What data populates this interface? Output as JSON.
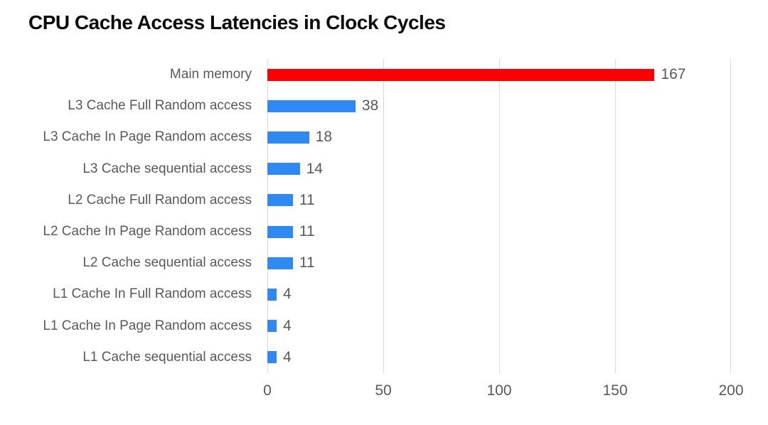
{
  "colors": {
    "highlight_red": "#fb0000",
    "bar_blue": "#2f89f0",
    "axis_text": "#595959",
    "gridline": "#dadada",
    "title_text": "#0a0a0a",
    "background": "#ffffff"
  },
  "chart_data": {
    "type": "bar",
    "orientation": "horizontal",
    "title": "CPU Cache Access Latencies in Clock Cycles",
    "categories": [
      "Main memory",
      "L3 Cache Full Random access",
      "L3 Cache In Page Random access",
      "L3 Cache sequential access",
      "L2 Cache Full Random access",
      "L2 Cache In Page Random access",
      "L2 Cache sequential access",
      "L1 Cache In Full Random access",
      "L1 Cache In Page Random access",
      "L1 Cache sequential access"
    ],
    "values": [
      167,
      38,
      18,
      14,
      11,
      11,
      11,
      4,
      4,
      4
    ],
    "bar_colors": [
      "#fb0000",
      "#2f89f0",
      "#2f89f0",
      "#2f89f0",
      "#2f89f0",
      "#2f89f0",
      "#2f89f0",
      "#2f89f0",
      "#2f89f0",
      "#2f89f0"
    ],
    "xlabel": "",
    "ylabel": "",
    "xlim": [
      0,
      200
    ],
    "xticks": [
      0,
      50,
      100,
      150,
      200
    ],
    "grid": true,
    "legend": false,
    "value_labels_shown": true
  }
}
